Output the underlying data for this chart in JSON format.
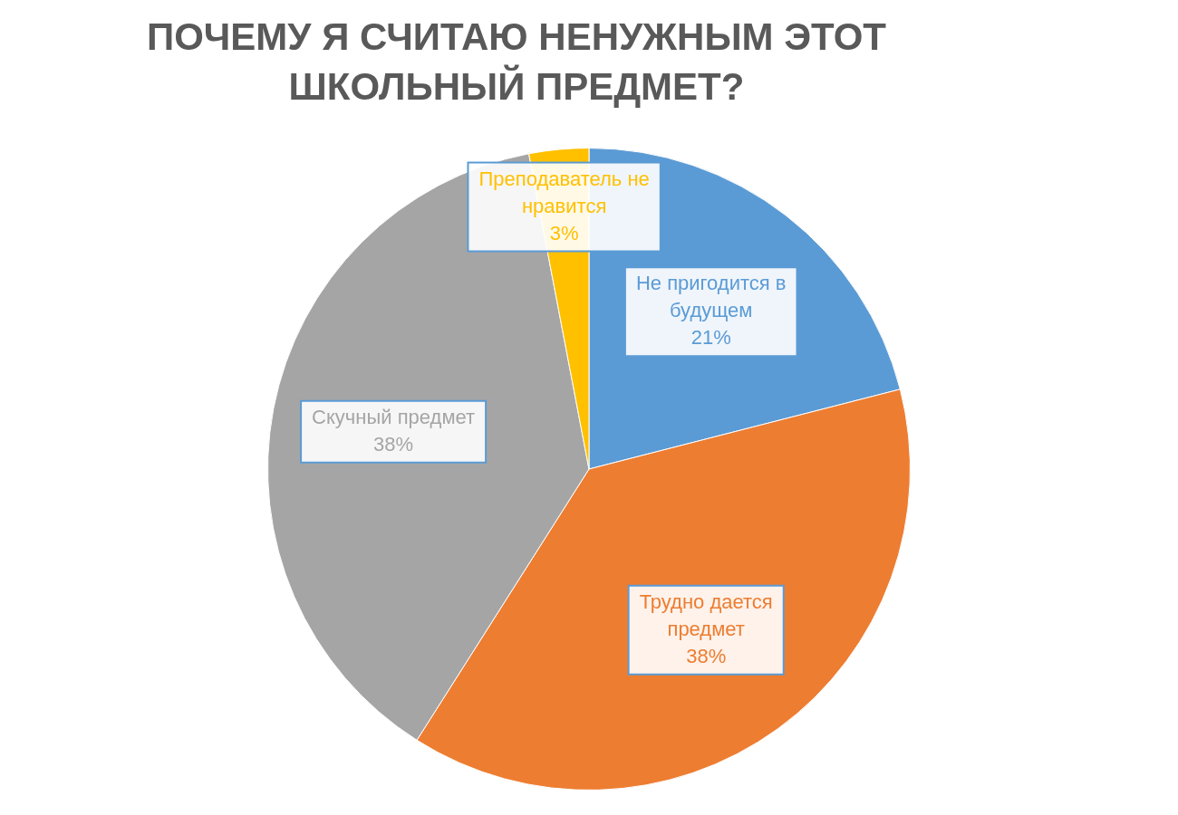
{
  "chart_data": {
    "type": "pie",
    "title": "ПОЧЕМУ Я СЧИТАЮ НЕНУЖНЫМ ЭТОТ ШКОЛЬНЫЙ ПРЕДМЕТ?",
    "categories": [
      "Не пригодится в будущем",
      "Трудно дается предмет",
      "Скучный предмет",
      "Преподаватель не нравится"
    ],
    "values": [
      21,
      38,
      38,
      3
    ],
    "colors": [
      "#5b9bd5",
      "#ed7d31",
      "#a5a5a5",
      "#ffc000"
    ],
    "value_labels": [
      "21%",
      "38%",
      "38%",
      "3%"
    ],
    "legend": false
  }
}
